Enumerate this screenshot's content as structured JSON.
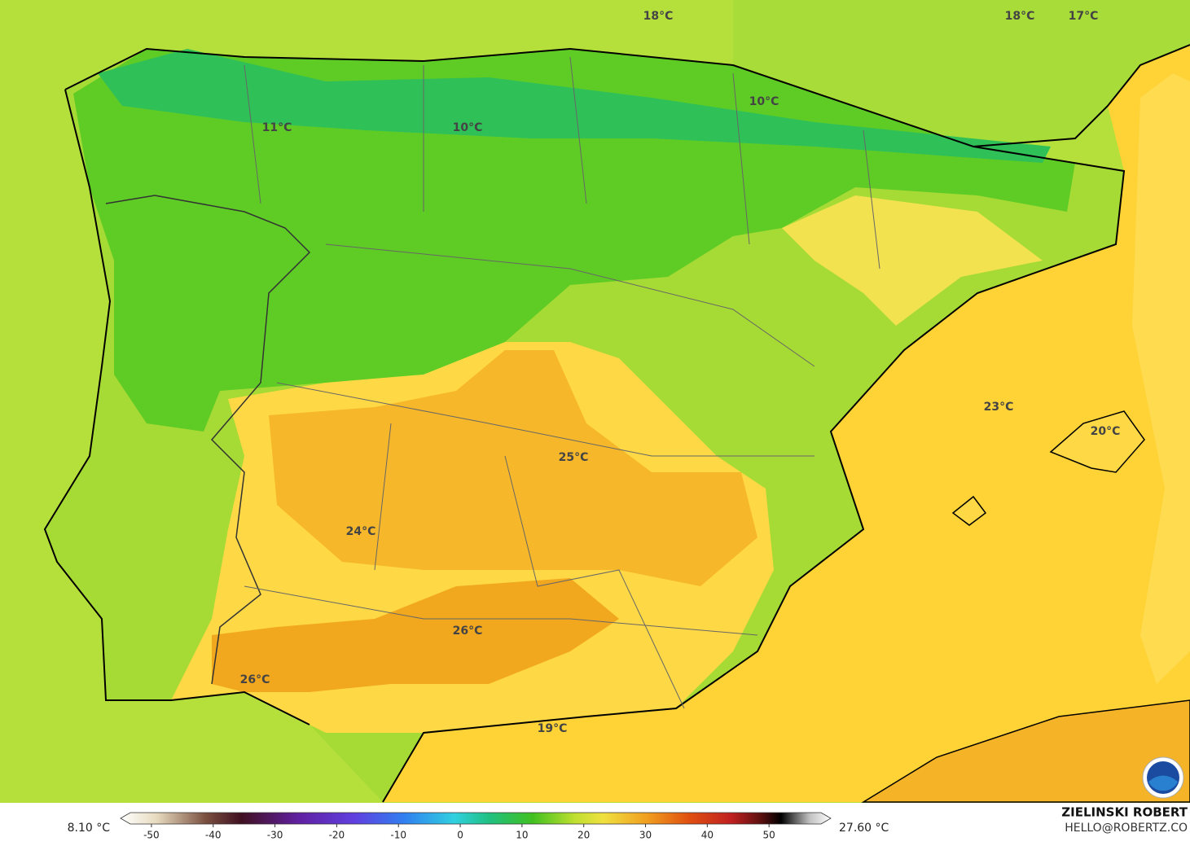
{
  "map": {
    "labels": [
      "18°C",
      "18°C",
      "17°C",
      "10°C",
      "11°C",
      "10°C",
      "23°C",
      "20°C",
      "25°C",
      "24°C",
      "26°C",
      "26°C",
      "19°C"
    ],
    "colorbar": {
      "min_label": "8.10 °C",
      "max_label": "27.60 °C",
      "lim": [
        -55,
        60
      ],
      "ticks": [
        -50,
        -40,
        -30,
        -20,
        -10,
        0,
        10,
        20,
        30,
        40,
        50
      ]
    },
    "credit": {
      "name": "ZIELINSKI ROBERT",
      "email": "HELLO@ROBERTZ.CO"
    }
  }
}
